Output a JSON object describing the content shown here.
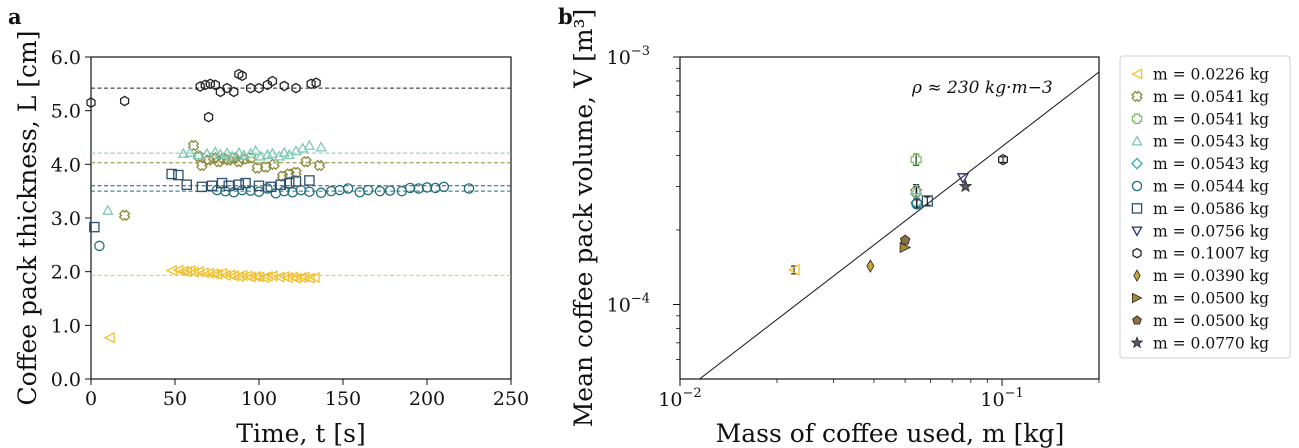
{
  "panels": {
    "a": "a",
    "b": "b"
  },
  "chart_data": [
    {
      "type": "scatter",
      "panel": "a",
      "xlabel": "Time, t [s]",
      "ylabel": "Coffee pack thickness, L [cm]",
      "xlim": [
        0,
        250
      ],
      "ylim": [
        0.0,
        6.0
      ],
      "x_ticks": [
        "0",
        "50",
        "100",
        "150",
        "200",
        "250"
      ],
      "y_ticks": [
        "0.0",
        "1.0",
        "2.0",
        "3.0",
        "4.0",
        "5.0",
        "6.0"
      ],
      "grid": false,
      "series": [
        {
          "color": "#f2c12e",
          "marker": "triangle-left",
          "mean": 1.93,
          "x": [
            11,
            48,
            52,
            55,
            57,
            59,
            61,
            64,
            67,
            70,
            73,
            75,
            78,
            80,
            83,
            85,
            88,
            90,
            93,
            95,
            98,
            100,
            103,
            105,
            108,
            112,
            115,
            117,
            120,
            122,
            125,
            127,
            130,
            133
          ],
          "y": [
            0.77,
            2.02,
            2.03,
            2.01,
            2.0,
            2.02,
            1.99,
            2.0,
            1.98,
            1.97,
            1.96,
            1.95,
            1.97,
            1.93,
            1.94,
            1.92,
            1.91,
            1.93,
            1.92,
            1.9,
            1.91,
            1.9,
            1.89,
            1.91,
            1.92,
            1.9,
            1.91,
            1.89,
            1.9,
            1.88,
            1.89,
            1.9,
            1.88,
            1.89
          ]
        },
        {
          "color": "#8a8a3c",
          "marker": "x-cross",
          "mean": 4.03,
          "x": [
            20,
            61,
            64,
            66,
            70,
            73,
            76,
            79,
            82,
            85,
            88,
            91,
            95,
            99,
            104,
            109,
            114,
            118,
            122,
            128,
            136
          ],
          "y": [
            3.05,
            4.35,
            4.15,
            3.98,
            4.08,
            4.12,
            4.05,
            4.1,
            4.08,
            4.12,
            4.05,
            4.1,
            4.12,
            3.93,
            3.95,
            4.0,
            3.78,
            3.82,
            3.85,
            4.05,
            3.98
          ]
        },
        {
          "color": "#7fc9b5",
          "marker": "triangle-up",
          "mean": 4.21,
          "x": [
            10,
            55,
            59,
            64,
            69,
            74,
            77,
            81,
            84,
            88,
            91,
            95,
            98,
            101,
            105,
            108,
            112,
            115,
            118,
            122,
            126,
            130,
            137
          ],
          "y": [
            3.14,
            4.2,
            4.22,
            4.18,
            4.2,
            4.23,
            4.18,
            4.21,
            4.15,
            4.22,
            4.17,
            4.2,
            4.25,
            4.15,
            4.18,
            4.2,
            4.15,
            4.22,
            4.18,
            4.25,
            4.3,
            4.35,
            4.32
          ]
        },
        {
          "color": "#1f6f7a",
          "marker": "circle",
          "mean": 3.5,
          "x": [
            5,
            75,
            80,
            85,
            90,
            95,
            100,
            105,
            110,
            115,
            120,
            125,
            130,
            137,
            143,
            148,
            153,
            160,
            165,
            172,
            178,
            185,
            190,
            195,
            200,
            205,
            210,
            225
          ],
          "y": [
            2.48,
            3.52,
            3.5,
            3.48,
            3.52,
            3.51,
            3.49,
            3.55,
            3.46,
            3.5,
            3.48,
            3.52,
            3.49,
            3.47,
            3.5,
            3.52,
            3.55,
            3.48,
            3.52,
            3.5,
            3.51,
            3.5,
            3.56,
            3.55,
            3.57,
            3.56,
            3.58,
            3.55
          ]
        },
        {
          "color": "#2f4f6e",
          "marker": "square",
          "mean": 3.6,
          "x": [
            2,
            48,
            52,
            57,
            66,
            72,
            78,
            82,
            88,
            92,
            100,
            107,
            113,
            118,
            122,
            130
          ],
          "y": [
            2.83,
            3.82,
            3.8,
            3.62,
            3.58,
            3.6,
            3.65,
            3.6,
            3.62,
            3.65,
            3.6,
            3.58,
            3.62,
            3.65,
            3.68,
            3.7
          ]
        },
        {
          "color": "#222222",
          "marker": "hexagon",
          "mean": 5.42,
          "x": [
            0,
            20,
            65,
            68,
            70,
            71,
            74,
            77,
            81,
            85,
            88,
            90,
            95,
            100,
            105,
            108,
            115,
            122,
            131,
            134
          ],
          "y": [
            5.15,
            5.18,
            5.45,
            5.48,
            4.88,
            5.5,
            5.48,
            5.35,
            5.42,
            5.35,
            5.68,
            5.65,
            5.42,
            5.42,
            5.48,
            5.55,
            5.46,
            5.42,
            5.5,
            5.52
          ]
        }
      ]
    },
    {
      "type": "scatter",
      "panel": "b",
      "xlabel": "Mass of coffee used, m [kg]",
      "ylabel": "Mean coffee pack volume, V [m³]",
      "xscale": "log",
      "yscale": "log",
      "xlim": [
        0.01,
        0.2
      ],
      "ylim": [
        5e-05,
        0.001
      ],
      "x_ticks": [
        "10−2",
        "10−1"
      ],
      "y_ticks": [
        "10−4",
        "10−3"
      ],
      "annotation": "ρ ≈ 230 kg·m−3",
      "fit_line": {
        "rho": 230
      },
      "legend_position": "outside right",
      "series": [
        {
          "name": "m = 0.0226 kg",
          "marker": "triangle-left",
          "color": "#f2c12e",
          "x": 0.0226,
          "y": 0.000138,
          "err": 5e-06
        },
        {
          "name": "m = 0.0541 kg",
          "marker": "x-cross",
          "color": "#8a8a3c",
          "x": 0.0541,
          "y": 0.000285,
          "err": 2e-05
        },
        {
          "name": "m = 0.0541 kg",
          "marker": "plus",
          "color": "#7fbf6a",
          "x": 0.0541,
          "y": 0.000385,
          "err": 2e-05
        },
        {
          "name": "m = 0.0543 kg",
          "marker": "triangle-up",
          "color": "#7fc9b5",
          "x": 0.0543,
          "y": 0.00029,
          "err": 1e-05
        },
        {
          "name": "m = 0.0543 kg",
          "marker": "diamond",
          "color": "#3aa6b0",
          "x": 0.0543,
          "y": 0.000258,
          "err": 1e-05
        },
        {
          "name": "m = 0.0544 kg",
          "marker": "circle",
          "color": "#1f6f7a",
          "x": 0.0544,
          "y": 0.000255,
          "err": 1e-05
        },
        {
          "name": "m = 0.0586 kg",
          "marker": "square",
          "color": "#2f4f6e",
          "x": 0.0586,
          "y": 0.000262,
          "err": 1e-05
        },
        {
          "name": "m = 0.0756 kg",
          "marker": "triangle-down",
          "color": "#2a2a6e",
          "x": 0.0756,
          "y": 0.000325,
          "err": 0
        },
        {
          "name": "m = 0.1007 kg",
          "marker": "hexagon",
          "color": "#222222",
          "x": 0.1007,
          "y": 0.000385,
          "err": 1e-05
        },
        {
          "name": "m = 0.0390 kg",
          "marker": "diamond-thin",
          "color": "#c8a638",
          "fill": true,
          "x": 0.039,
          "y": 0.000143,
          "err": 0
        },
        {
          "name": "m = 0.0500 kg",
          "marker": "triangle-right",
          "color": "#a88a35",
          "fill": true,
          "x": 0.05,
          "y": 0.00017,
          "err": 0
        },
        {
          "name": "m = 0.0500 kg",
          "marker": "pentagon",
          "color": "#8c6f3e",
          "fill": true,
          "x": 0.05,
          "y": 0.000182,
          "err": 0
        },
        {
          "name": "m = 0.0770 kg",
          "marker": "star",
          "color": "#5a5a6a",
          "fill": true,
          "x": 0.077,
          "y": 0.0003,
          "err": 0
        }
      ]
    }
  ]
}
